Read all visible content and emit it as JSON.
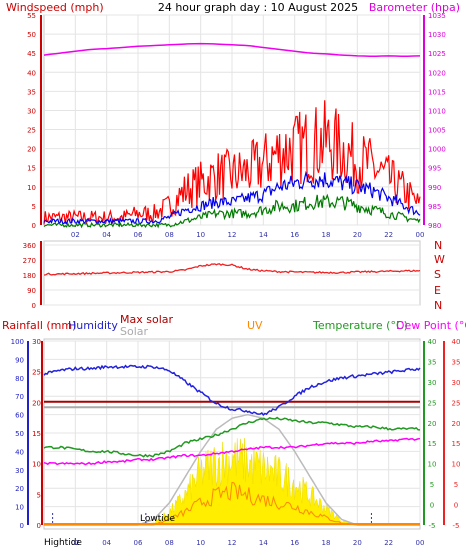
{
  "title": "24 hour graph day : 10 August 2025",
  "colors": {
    "gust": "#ff0000",
    "avg_wind": "#0000ee",
    "wind_min": "#007a00",
    "barometer": "#ee00ee",
    "direction": "#ee2222",
    "rain": "#0000ff",
    "humidity": "#2222dd",
    "max_solar": "#aa0000",
    "solar": "#aaaaaa",
    "uv": "#ff8800",
    "temperature": "#229922",
    "dew_point": "#ff00ff",
    "solar_fill": "#ffee00"
  },
  "chart_data": [
    {
      "type": "line",
      "title": "24 hour graph day : 10 August 2025",
      "left_axis_label": "Windspeed (mph)",
      "right_axis_label": "Barometer (hpa)",
      "left_ylim": [
        0,
        55
      ],
      "left_ticks": [
        "0",
        "5",
        "10",
        "15",
        "20",
        "25",
        "30",
        "35",
        "40",
        "45",
        "50",
        "55"
      ],
      "right_ylim": [
        980,
        1035
      ],
      "right_ticks": [
        "980",
        "985",
        "990",
        "995",
        "1000",
        "1005",
        "1010",
        "1015",
        "1020",
        "1025",
        "1030",
        "1035"
      ],
      "x_ticks": [
        "02",
        "04",
        "06",
        "08",
        "10",
        "12",
        "14",
        "16",
        "18",
        "20",
        "22",
        "00"
      ],
      "hours": [
        0,
        1,
        2,
        3,
        4,
        5,
        6,
        7,
        8,
        9,
        10,
        11,
        12,
        13,
        14,
        15,
        16,
        17,
        18,
        19,
        20,
        21,
        22,
        23,
        24
      ],
      "series": [
        {
          "key": "gust",
          "axis": "left",
          "color_key": "gust",
          "values": [
            2,
            2,
            2,
            2,
            2,
            2,
            3,
            3,
            5,
            9,
            11,
            13,
            13,
            14,
            16,
            19,
            20,
            21,
            22,
            20,
            17,
            15,
            12,
            9,
            5
          ]
        },
        {
          "key": "avg_wind",
          "axis": "left",
          "color_key": "avg_wind",
          "values": [
            1,
            1,
            1,
            1,
            1,
            1,
            1,
            1,
            2,
            4,
            5,
            6,
            6,
            7,
            8,
            10,
            11,
            12,
            12,
            11,
            10,
            9,
            7,
            5,
            3
          ]
        },
        {
          "key": "wind_min",
          "axis": "left",
          "color_key": "wind_min",
          "values": [
            0,
            0,
            0,
            0,
            0,
            0,
            0,
            0,
            0,
            1,
            2,
            3,
            3,
            3,
            4,
            5,
            5,
            6,
            6,
            6,
            5,
            4,
            3,
            2,
            1
          ]
        },
        {
          "key": "barometer",
          "axis": "right",
          "color_key": "barometer",
          "values": [
            1024.5,
            1025,
            1025.5,
            1026,
            1026.2,
            1026.5,
            1026.8,
            1027,
            1027.2,
            1027.4,
            1027.5,
            1027.4,
            1027.2,
            1027,
            1026.5,
            1026,
            1025.5,
            1025,
            1024.8,
            1024.5,
            1024.3,
            1024.2,
            1024.3,
            1024.2,
            1024.3
          ]
        }
      ]
    },
    {
      "type": "line",
      "direction_labels": [
        "N",
        "W",
        "S",
        "E",
        "N"
      ],
      "left_ylim": [
        0,
        360
      ],
      "left_ticks": [
        "0",
        "90",
        "180",
        "270",
        "360"
      ],
      "hours": [
        0,
        1,
        2,
        3,
        4,
        5,
        6,
        7,
        8,
        9,
        10,
        11,
        12,
        13,
        14,
        15,
        16,
        17,
        18,
        19,
        20,
        21,
        22,
        23,
        24
      ],
      "series": [
        {
          "key": "direction",
          "color_key": "direction",
          "values": [
            185,
            186,
            188,
            190,
            192,
            194,
            196,
            198,
            200,
            210,
            235,
            245,
            240,
            215,
            205,
            200,
            198,
            196,
            195,
            195,
            198,
            200,
            202,
            205,
            205
          ]
        }
      ]
    },
    {
      "type": "line",
      "legend": {
        "rain": "Rainfall (mm)",
        "humidity": "Humidity",
        "max_solar": "Max solar",
        "solar": "Solar",
        "uv": "UV",
        "temperature": "Temperature (°C)",
        "dew_point": "Dew Point (°C)"
      },
      "left1_ylim": [
        0,
        30
      ],
      "left1_ticks": [
        "0",
        "5",
        "10",
        "15",
        "20",
        "25",
        "30"
      ],
      "left2_ylim": [
        0,
        100
      ],
      "left2_ticks": [
        "0",
        "10",
        "20",
        "30",
        "40",
        "50",
        "60",
        "70",
        "80",
        "90",
        "100"
      ],
      "right_ylim": [
        -5,
        40
      ],
      "right_ticks": [
        "-5",
        "0",
        "5",
        "10",
        "15",
        "20",
        "25",
        "30",
        "35",
        "40"
      ],
      "x_ticks": [
        "02",
        "04",
        "06",
        "08",
        "10",
        "12",
        "14",
        "16",
        "18",
        "20",
        "22",
        "00"
      ],
      "tide_labels": {
        "high": "Hightide",
        "low": "Lowtide"
      },
      "hours": [
        0,
        1,
        2,
        3,
        4,
        5,
        6,
        7,
        8,
        9,
        10,
        11,
        12,
        13,
        14,
        15,
        16,
        17,
        18,
        19,
        20,
        21,
        22,
        23,
        24
      ],
      "series": [
        {
          "key": "humidity",
          "axis": "left2",
          "color_key": "humidity",
          "values": [
            82,
            84,
            85,
            85,
            86,
            86,
            86,
            86,
            84,
            78,
            72,
            66,
            63,
            62,
            60,
            64,
            70,
            75,
            78,
            80,
            81,
            82,
            83,
            84,
            85
          ]
        },
        {
          "key": "max_solar",
          "axis": "left2",
          "color_key": "max_solar",
          "values": [
            67,
            67,
            67,
            67,
            67,
            67,
            67,
            67,
            67,
            67,
            67,
            67,
            67,
            67,
            67,
            67,
            67,
            67,
            67,
            67,
            67,
            67,
            67,
            67,
            67
          ]
        },
        {
          "key": "solar",
          "axis": "left2",
          "color_key": "solar",
          "values": [
            64,
            64,
            64,
            64,
            64,
            64,
            64,
            64,
            64,
            64,
            64,
            64,
            64,
            64,
            64,
            64,
            64,
            64,
            64,
            64,
            64,
            64,
            64,
            64,
            64
          ]
        },
        {
          "key": "temperature",
          "axis": "right",
          "color_key": "temperature",
          "values": [
            14,
            14,
            13.5,
            13,
            13,
            12.5,
            12,
            12,
            13,
            15,
            16,
            17,
            18.5,
            20,
            21,
            21,
            20.5,
            20,
            20,
            19.5,
            19,
            19,
            18.5,
            18.5,
            18.5
          ]
        },
        {
          "key": "dew_point",
          "axis": "right",
          "color_key": "dew_point",
          "values": [
            10,
            10,
            10,
            10,
            10.5,
            10.5,
            11,
            11,
            11.5,
            12,
            12,
            12.5,
            13,
            13.5,
            14,
            14,
            14,
            14.5,
            15,
            15,
            15,
            15.5,
            15.5,
            16,
            16
          ]
        },
        {
          "key": "solar_curve",
          "axis": "left2",
          "color_key": "solar",
          "values": [
            0,
            0,
            0,
            0,
            0,
            0,
            0,
            3,
            12,
            26,
            40,
            52,
            58,
            60,
            58,
            52,
            40,
            26,
            12,
            3,
            0,
            0,
            0,
            0,
            0
          ]
        },
        {
          "key": "solar_fill",
          "axis": "left2",
          "color_key": "solar_fill",
          "values": [
            0,
            0,
            0,
            0,
            0,
            0,
            0,
            1,
            6,
            14,
            25,
            30,
            32,
            30,
            27,
            24,
            20,
            14,
            8,
            2,
            0,
            0,
            0,
            0,
            0
          ]
        },
        {
          "key": "uv",
          "axis": "left2",
          "color_key": "uv",
          "values": [
            0,
            0,
            0,
            0,
            0,
            0,
            0,
            0,
            3,
            7,
            12,
            16,
            18,
            16,
            14,
            12,
            10,
            7,
            4,
            1,
            0,
            0,
            0,
            0,
            0
          ]
        }
      ]
    }
  ]
}
